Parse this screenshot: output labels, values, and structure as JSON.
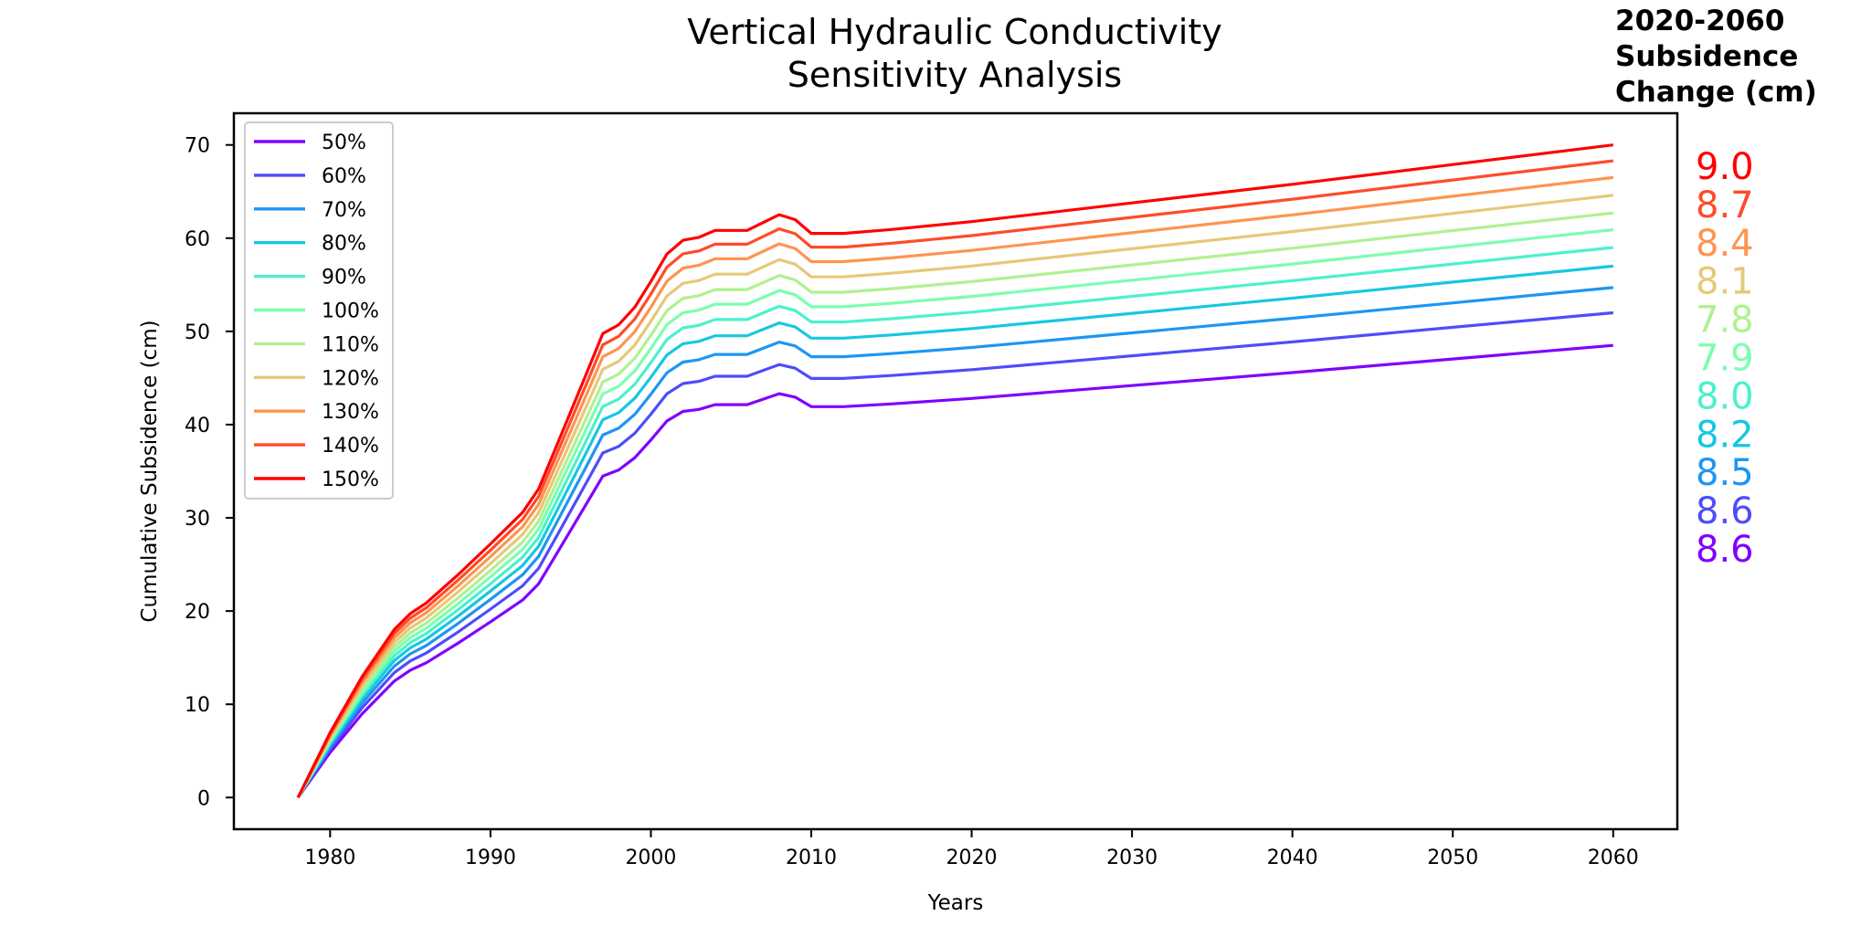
{
  "chart_data": {
    "type": "line",
    "title_lines": [
      "Vertical Hydraulic Conductivity",
      "Sensitivity Analysis"
    ],
    "side_title_lines": [
      "2020-2060",
      "Subsidence",
      "Change (cm)"
    ],
    "xlabel": "Years",
    "ylabel": "Cumulative Subsidence (cm)",
    "xlim": [
      1974,
      2064
    ],
    "ylim": [
      -3.4,
      73.4
    ],
    "x_ticks": [
      1980,
      1990,
      2000,
      2010,
      2020,
      2030,
      2040,
      2050,
      2060
    ],
    "y_ticks": [
      0,
      10,
      20,
      30,
      40,
      50,
      60,
      70
    ],
    "grid": false,
    "legend_position": "upper-left",
    "x": [
      1978,
      1980,
      1982,
      1984,
      1985,
      1986,
      1988,
      1990,
      1992,
      1993,
      1994,
      1996,
      1997,
      1998,
      1999,
      2000,
      2001,
      2002,
      2003,
      2004,
      2006,
      2008,
      2009,
      2010,
      2011,
      2012,
      2015,
      2020,
      2030,
      2040,
      2050,
      2060
    ],
    "base_shape": [
      0,
      6.6,
      12.3,
      17.1,
      18.7,
      19.8,
      22.7,
      25.8,
      29.0,
      31.4,
      35.3,
      43.2,
      47.2,
      48.1,
      49.9,
      52.5,
      55.3,
      56.7,
      57.0,
      57.7,
      57.7,
      59.3,
      58.8,
      57.4,
      57.4,
      57.4,
      57.8,
      58.6,
      60.5,
      62.4,
      64.4,
      66.4
    ],
    "series": [
      {
        "name": "50%",
        "color": "#8000ff",
        "y_2060": 48.5,
        "y_2020": 39.9,
        "change": "8.6"
      },
      {
        "name": "60%",
        "color": "#4e4cfb",
        "y_2060": 52.0,
        "y_2020": 43.4,
        "change": "8.6"
      },
      {
        "name": "70%",
        "color": "#1e96f2",
        "y_2060": 54.7,
        "y_2020": 46.2,
        "change": "8.5"
      },
      {
        "name": "80%",
        "color": "#16c7e2",
        "y_2060": 57.0,
        "y_2020": 48.8,
        "change": "8.2"
      },
      {
        "name": "90%",
        "color": "#4bf1cb",
        "y_2060": 59.0,
        "y_2020": 51.0,
        "change": "8.0"
      },
      {
        "name": "100%",
        "color": "#7cfeb0",
        "y_2060": 60.9,
        "y_2020": 53.0,
        "change": "7.9"
      },
      {
        "name": "110%",
        "color": "#b0f190",
        "y_2060": 62.7,
        "y_2020": 54.9,
        "change": "7.8"
      },
      {
        "name": "120%",
        "color": "#e6c878",
        "y_2060": 64.6,
        "y_2020": 56.5,
        "change": "8.1"
      },
      {
        "name": "130%",
        "color": "#ff9450",
        "y_2060": 66.5,
        "y_2020": 58.1,
        "change": "8.4"
      },
      {
        "name": "140%",
        "color": "#ff4b28",
        "y_2060": 68.3,
        "y_2020": 59.6,
        "change": "8.7"
      },
      {
        "name": "150%",
        "color": "#ff0000",
        "y_2060": 70.0,
        "y_2020": 61.0,
        "change": "9.0"
      }
    ]
  }
}
